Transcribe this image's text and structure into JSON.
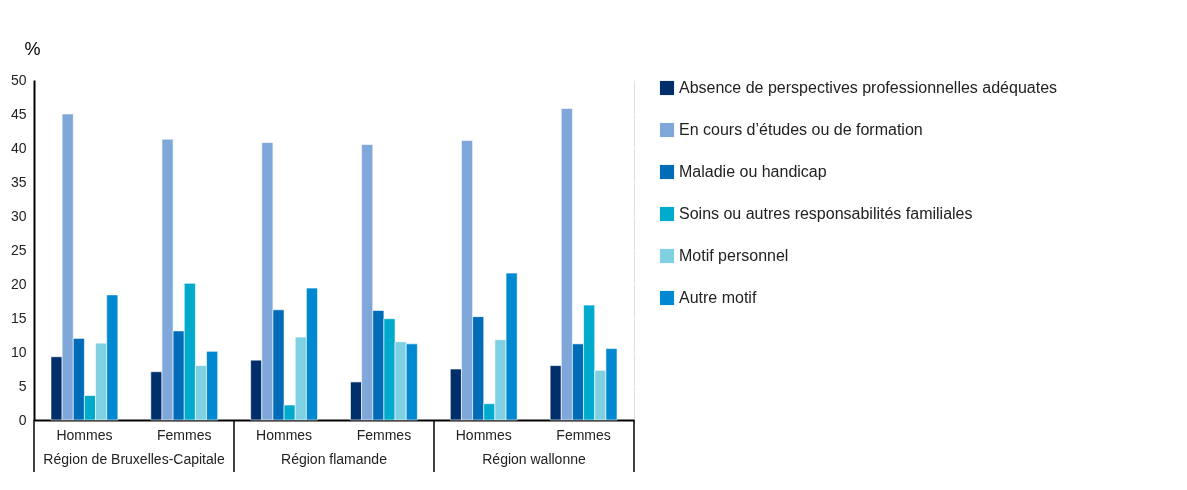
{
  "chart_data": {
    "type": "bar",
    "ylabel": "%",
    "categories": [
      "Hommes",
      "Femmes",
      "Hommes",
      "Femmes",
      "Hommes",
      "Femmes"
    ],
    "annotations": [
      "Région de Bruxelles-Capitale",
      "Région flamande",
      "Région wallonne"
    ],
    "series": [
      {
        "name": "Absence de perspectives professionnelles adéquates",
        "color": "#002f6c",
        "values": [
          9.3,
          7.1,
          8.8,
          5.6,
          7.5,
          8.0
        ]
      },
      {
        "name": "En cours d’études ou de formation",
        "color": "#7fa7d9",
        "values": [
          45.0,
          41.3,
          40.8,
          40.5,
          41.1,
          45.8
        ]
      },
      {
        "name": "Maladie ou handicap",
        "color": "#006bb6",
        "values": [
          12.0,
          13.1,
          16.2,
          16.1,
          15.2,
          11.2
        ]
      },
      {
        "name": "Soins ou autres responsabilités familiales",
        "color": "#00aacc",
        "values": [
          3.6,
          20.1,
          2.2,
          14.9,
          2.4,
          16.9
        ]
      },
      {
        "name": "Motif personnel",
        "color": "#7fd0e3",
        "values": [
          11.3,
          8.0,
          12.2,
          11.5,
          11.8,
          7.3
        ]
      },
      {
        "name": "Autre motif",
        "color": "#0088d1",
        "values": [
          18.4,
          10.1,
          19.4,
          11.2,
          21.6,
          10.5
        ]
      }
    ],
    "ylim": [
      0,
      50
    ],
    "yticks": [
      0,
      5,
      10,
      15,
      20,
      25,
      30,
      35,
      40,
      45,
      50
    ],
    "grid": "y",
    "legend": "right"
  }
}
